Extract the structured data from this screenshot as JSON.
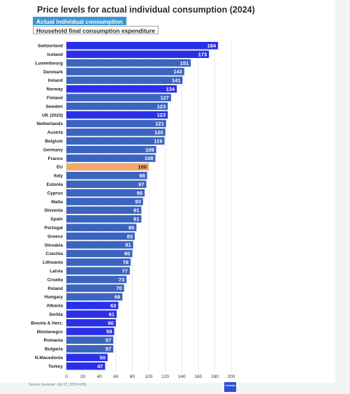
{
  "title": "Price levels for actual individual consumption (2024)",
  "buttons": {
    "active": "Actual individual consumption",
    "inactive": "Household final consumption expenditure"
  },
  "source": "Source: Eurostat - (ELST_2020=100)",
  "logo_text": "eurostat",
  "colors": {
    "country": "#3b64bf",
    "non_eu": "#2a30e8",
    "eu": "#f0a96e"
  },
  "chart_data": {
    "type": "bar",
    "orientation": "horizontal",
    "title": "Price levels for actual individual consumption (2024)",
    "xlim": [
      0,
      200
    ],
    "xticks": [
      0,
      20,
      40,
      60,
      80,
      100,
      120,
      140,
      160,
      180,
      200
    ],
    "grid": true,
    "categories": [
      "Switzerland",
      "Iceland",
      "Luxembourg",
      "Denmark",
      "Ireland",
      "Norway",
      "Finland",
      "Sweden",
      "UK (2023)",
      "Netherlands",
      "Austria",
      "Belgium",
      "Germany",
      "France",
      "EU",
      "Italy",
      "Estonia",
      "Cyprus",
      "Malta",
      "Slovenia",
      "Spain",
      "Portugal",
      "Greece",
      "Slovakia",
      "Czechia",
      "Lithuania",
      "Latvia",
      "Croatia",
      "Poland",
      "Hungary",
      "Albania",
      "Serbia",
      "Bosnia & Herz.",
      "Montenegro",
      "Romania",
      "Bulgaria",
      "N.Macedonia",
      "Turkey"
    ],
    "values": [
      184,
      173,
      151,
      143,
      141,
      134,
      127,
      123,
      123,
      121,
      120,
      119,
      109,
      108,
      100,
      98,
      97,
      95,
      93,
      91,
      91,
      85,
      83,
      81,
      80,
      78,
      77,
      73,
      70,
      68,
      63,
      61,
      60,
      58,
      57,
      57,
      50,
      47
    ],
    "groups": [
      "non_eu",
      "non_eu",
      "country",
      "country",
      "country",
      "non_eu",
      "country",
      "country",
      "non_eu",
      "country",
      "country",
      "country",
      "country",
      "country",
      "eu",
      "country",
      "country",
      "country",
      "country",
      "country",
      "country",
      "country",
      "country",
      "country",
      "country",
      "country",
      "country",
      "country",
      "country",
      "country",
      "non_eu",
      "non_eu",
      "non_eu",
      "non_eu",
      "country",
      "country",
      "non_eu",
      "non_eu"
    ]
  }
}
